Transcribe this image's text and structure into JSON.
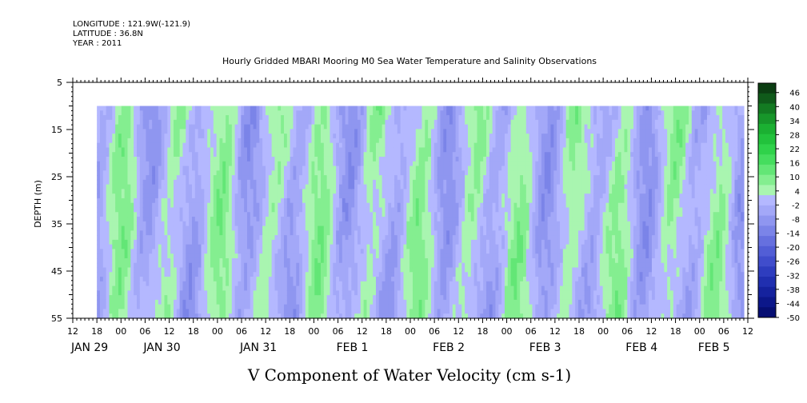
{
  "header": {
    "longitude_label": "LONGITUDE : 121.9W(-121.9)",
    "latitude_label": "LATITUDE : 36.8N",
    "year_label": "YEAR : 2011"
  },
  "chart_data": {
    "type": "heatmap",
    "title": "Hourly Gridded MBARI Mooring M0 Sea Water Temperature and Salinity Observations",
    "xlabel": "V Component of Water Velocity (cm s-1)",
    "ylabel": "DEPTH (m)",
    "ylim": [
      5,
      55
    ],
    "y_inverted": true,
    "y_ticks": [
      5,
      15,
      25,
      35,
      45,
      55
    ],
    "data_depth_range": [
      10,
      55
    ],
    "x_range_hours": {
      "start": "JAN 29 12:00",
      "end": "FEB 5 12:00"
    },
    "data_time_range": {
      "start": "JAN 29 18:00",
      "end": "FEB 5 11:00"
    },
    "x_hour_ticks": [
      "12",
      "18",
      "00",
      "06",
      "12",
      "18",
      "00",
      "06",
      "12",
      "18",
      "00",
      "06",
      "12",
      "18",
      "00",
      "06",
      "12",
      "18",
      "00",
      "06",
      "12",
      "18",
      "00",
      "06",
      "12",
      "18",
      "00",
      "06",
      "12"
    ],
    "x_date_labels": [
      {
        "label": "JAN 29",
        "hour_index": 0
      },
      {
        "label": "JAN 30",
        "hour_index": 3
      },
      {
        "label": "JAN 31",
        "hour_index": 7
      },
      {
        "label": "FEB  1",
        "hour_index": 11
      },
      {
        "label": "FEB  2",
        "hour_index": 15
      },
      {
        "label": "FEB  3",
        "hour_index": 19
      },
      {
        "label": "FEB  4",
        "hour_index": 23
      },
      {
        "label": "FEB  5",
        "hour_index": 26
      }
    ],
    "colorbar": {
      "min": -50,
      "max": 50,
      "step": 6,
      "tick_labels": [
        "46",
        "40",
        "34",
        "28",
        "22",
        "16",
        "10",
        "4",
        "-2",
        "-8",
        "-14",
        "-20",
        "-26",
        "-32",
        "-38",
        "-44",
        "-50"
      ],
      "colors_high": [
        "#0b3d12",
        "#0f5a1a",
        "#137a22",
        "#17962a",
        "#1bb032",
        "#22c23c",
        "#2fd24a",
        "#45dd5e",
        "#63e676",
        "#84ee90",
        "#a9f5b0"
      ],
      "colors_low": [
        "#b4b8ff",
        "#a3a8f8",
        "#8f96f0",
        "#7b84e8",
        "#6670df",
        "#525ed6",
        "#404dcc",
        "#2e3dbf",
        "#202fb0",
        "#15229e",
        "#0c178a",
        "#060e72"
      ]
    },
    "field_description": "alternating northward (green, ~+4..+20) and southward (blue, ~-2..-20) velocity bands, roughly semi-diurnal period"
  }
}
